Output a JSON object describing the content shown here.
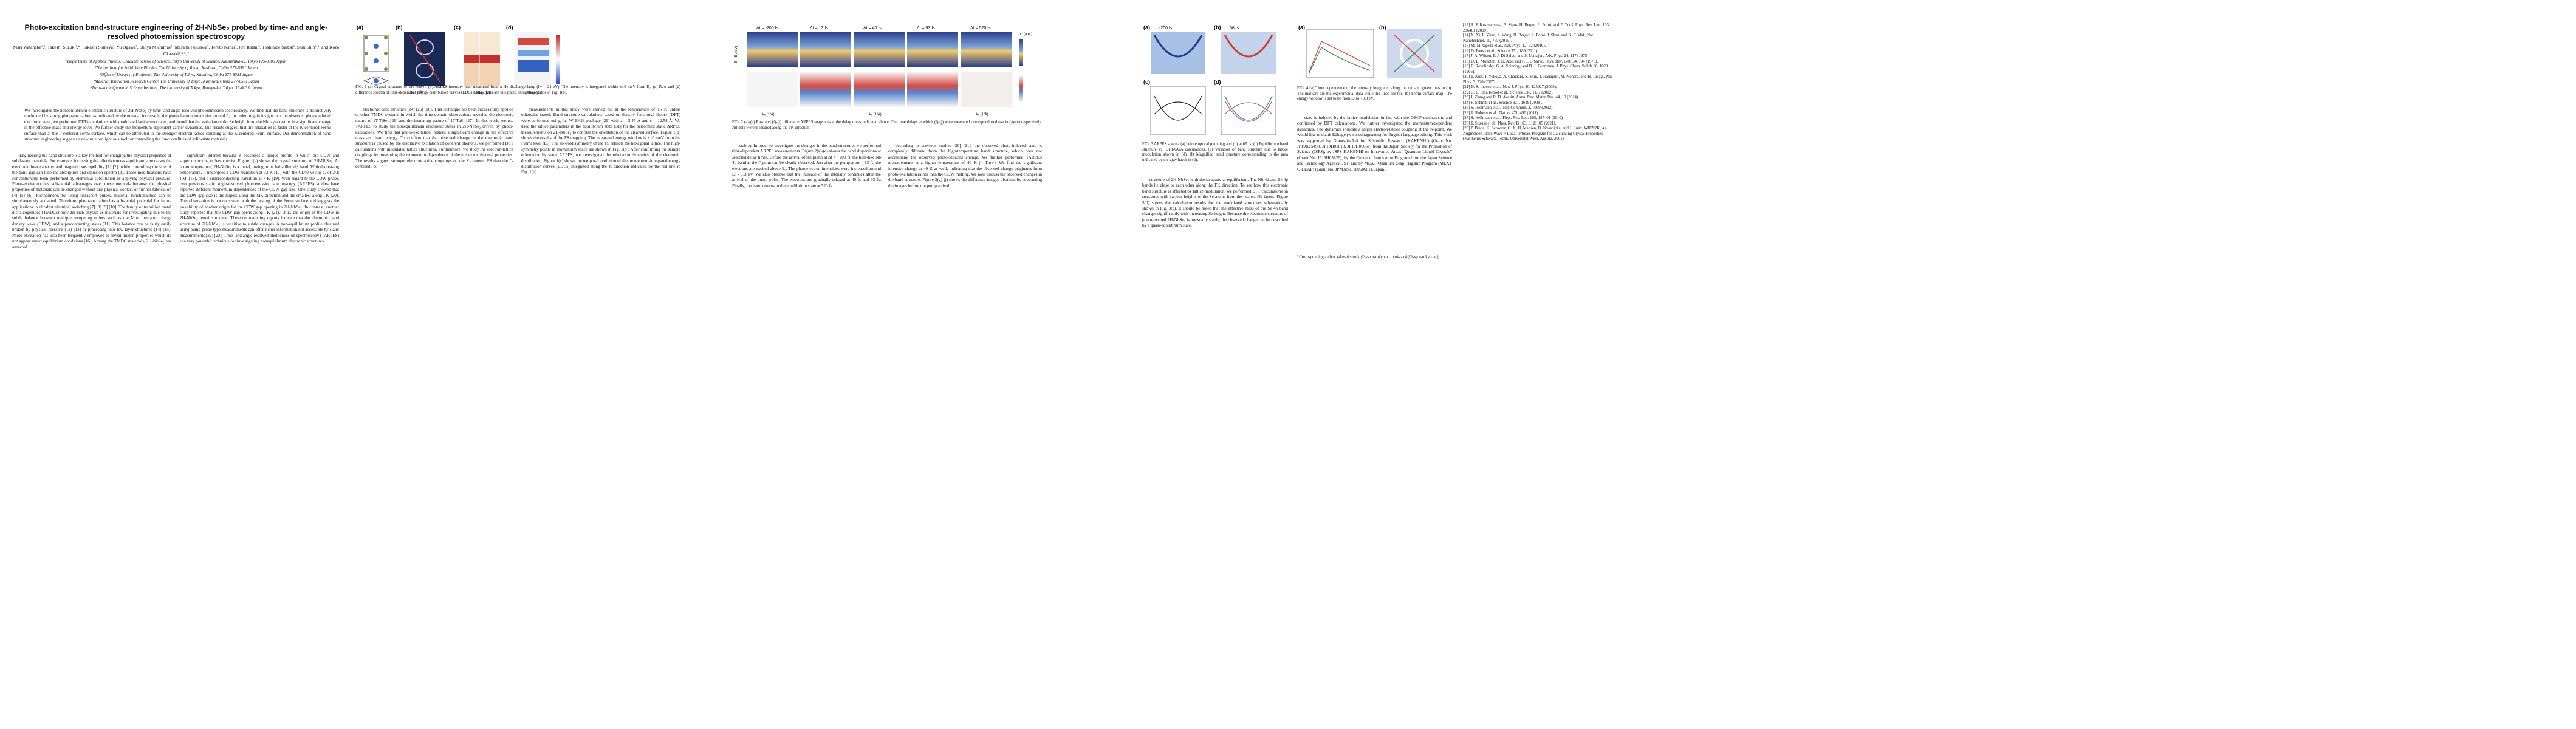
{
  "header": {
    "title": "Photo-excitation band-structure engineering of 2H-NbSe₂ probed by time- and angle-resolved photoemission spectroscopy",
    "authors": "Mari Watanabe¹,², Takeshi Suzuki²,*, Takashi Someya², Yu Ogawa², Shoya Michimae², Masami Fujisawa², Teruto Kanai², Jiro Itatani², Toshihide Saitoh³, Shik Shin²,⁴, and Kozo Okazaki²,⁴,⁵,*",
    "affiliations": [
      "¹Department of Applied Physics, Graduate School of Science, Tokyo University of Science, Katsushika-ku, Tokyo 125-8585 Japan",
      "²The Institute for Solid State Physics, The University of Tokyo, Kashiwa, Chiba 277-8581 Japan",
      "³Office of University Professor, The University of Tokyo, Kashiwa, Chiba 277-8581 Japan",
      "⁴Material Innovation Research Center, The University of Tokyo, Kashiwa, Chiba 277-8581 Japan",
      "⁵Trans-scale Quantum Science Institute, The University of Tokyo, Bunkyo-ku, Tokyo 113-0033, Japan"
    ]
  },
  "abstract": "We investigated the nonequilibrium electronic structure of 2H-NbSe₂ by time- and angle-resolved photoemission spectroscopy. We find that the band structure is distinctively modulated by strong photo-excitation, as indicated by the unusual increase in the photoelectron intensities around Eₒ. In order to gain insight into the observed photo-induced electronic state, we performed DFT calculations with modulated lattice structures, and found that the variation of the Se height from the Nb layer results in a significant change in the effective mass and energy level. We further study the momentum-dependent carrier dynamics. The results suggest that the relaxation is faster at the K-centered Fermi surface than at the Γ-centered Fermi surface, which can be attributed to the stronger electron-lattice coupling at the K-centered Fermi surface. Our demonstration of band structure engineering suggests a new rule for light as a tool for controlling the functionalities of solid-state materials.",
  "body": {
    "col1": "Engineering the band structure is a key method for changing the physical properties of solid-state materials. For example, increasing the effective mass significantly increases the electronic heat capacity and magnetic susceptibility [1] [2], while controlling the size of the band gap can tune the absorption and emission spectra [3]. These modifications have conventionally been performed by elemental substitution or applying physical pressure. Photo-excitation has substantial advantages over these methods because the physical properties of materials can be changed without any physical contact or further fabrication [4] [5] [6]. Furthermore, by using ultrashort pulses, material functionalities can be simultaneously activated. Therefore, photo-excitation has substantial potential for future applications in ultrafast electrical switching [7] [8] [9] [10]. The family of transition metal dichalcogenides (TMDCs) provides rich physics as materials for investigating due to the subtle balance between multiple competing orders such as the Mott insulator, charge density wave (CDW), and superconducting states [11]. This balance can be fairly easily broken by physical pressure [12] [13] or processing into few-layer structures [14] [15]. Photo-excitation has also been frequently employed to reveal hidden properties which do not appear under equilibrium conditions [16]. Among the TMDC materials, 2H-NbSe₂ has attracted",
    "col2": "significant interest because it possesses a unique profile in which the CDW and superconducting orders coexist. Figure 1(a) shows the crystal structure of 2H-NbSe₂. At room temperature, 2H-NbSe₂ is a metal, owing to its half-filled dₓ² band. With decreasing temperature, it undergoes a CDW transition at 33 K [17] with the CDW vector qₓ of 2/3|ΓM| [18], and a superconducting transition at 7 K [19]. With regard to the CDW phase, two previous static angle-resolved photoemission spectroscopy (ARPES) studies have reported different momentum dependences of the CDW gap size. One study showed that the CDW gap size is the largest along the MK direction and the smallest along ΓK [20]. This observation is not consistent with the nesting of the Fermi surface and suggests the possibility of another origin for the CDW gap opening in 2H-NbSe₂. In contrast, another study reported that the CDW gap opens along ΓK [21]. Thus, the origin of the CDW in 2H-NbSe₂ remains unclear. These contradicting reports indicate that the electronic band structure of 2H-NbSe₂ is sensitive to subtle changes. A non-equilibrium profile obtained using pump-probe type measurements can offer richer information not accessible by static measurements [22] [23]. Time- and angle-resolved photoemission spectroscopy (TARPES) is a very powerful technique for investigating nonequilibrium electronic structures.",
    "col3": "electronic band structure [24] [25] [10]. This technique has been successfully applied to other TMDC systems in which the time-domain observations revealed the electronic nature of 1T-TiSe₂ [26] and the insulating nature of 1T-TaS₂ [27]. In this work, we use TARPES to study the nonequilibrium electronic states in 2H-NbSe₂ driven by photo-excitations. We find that photo-excitation induces a significant change in the effective mass and band energy. To confirm that the observed change in the electronic band structure is caused by the displacive excitation of coherent phonons, we performed DFT calculations with modulated lattice structures. Furthermore, we study the electron-lattice couplings by measuring the momentum dependence of the electronic thermal properties. The results suggest stronger electron-lattice couplings on the K-centered FS than the Γ-centered FS.",
    "col4": "measurements in this study were carried out at the temperature of 15 K unless otherwise stated. Band structure calculations based on density functional theory (DFT) were performed using the WIEN2k package [29] with a = 3.45 Å and c = 12.54 Å. We used the lattice parameters in the equilibrium state [31] for the performed static ARPES measurements on 2H-NbSe₂ to confirm the orientation of the cleaved surface. Figure 1(b) shows the results of the FS mapping. The integrated energy window is ±10 meV from the Fermi level (Eₒ). The six-fold symmetry of the FS reflects the hexagonal lattice. The high-symmetry points in momentum space are shown in Fig. 1(b). After confirming the sample orientation by static ARPES, we investigated the relaxation dynamics of the electronic distribution. Figure 1(c) shows the temporal evolution of the momentum-integrated energy distribution curves (EDCs) integrated along the K direction indicated by the red line in Fig. 1(b).",
    "col5": "stable). In order to investigate the changes in the band structure, we performed time-dependent ARPES measurements. Figure 2(a)-(e) shows the band dispersions at selected delay times. Before the arrival of the pump at Δt = −200 fs, the hole-like Nb 4d band at the Γ point can be clearly observed. Just after the pump at Δt = 13 fs, the electrons are excited above Eₒ. The photoelectron intensities were increased around Eₒ - 1.3 eV. We also observe that the increase of the intensity continues after the arrival of the pump pulse. The electrons are gradually relaxed at 40 fs and 93 fs. Finally, the band returns to the equilibrium state at 520 fs.",
    "col6": "according to previous studies [20] [21], the observed photo-induced state is completely different from the high-temperature band structure, which does not accompany the observed photo-induced change. We further performed TARPES measurements at a higher temperature of 40 K (> Tₜᴅᴡ). We find the significant intensity change at 40 K as well, indicating that the observed change originates from photo-excitation rather than the CDW melting. We now discuss the observed changes in the band structure. Figure 2(g)-(j) shows the difference images obtained by subtracting the images before the pump arrival.",
    "col7": "structure of 2H-NbSe₂ with the structure at equilibrium. The Nb 4d and Se 4p bands lie close to each other along the ΓK direction. To see how this electronic band structure is affected by lattice modulation, we performed DFT calculations on structures with various heights of the Se atoms from the nearest Nb layers. Figure 3(d) shows the calculation results for the modulated structures schematically shown in Fig. 3(c). It should be noted that the effective mass of the Se 4p band changes significantly with increasing Se height. Because the electronic structure of photo-excited 2H-NbSe₂ is unusually stable, the observed change can be described by a quasi-equilibrium state.",
    "col8": "state is induced by the lattice modulation in line with the DECP mechanism, and confirmed by DFT calculations. We further investigated the momentum-dependent dynamics. The dynamics indicate a larger electron-lattice coupling at the K-point. We would like to thank Editage (www.editage.com) for English language editing. This work was supported by Grants-in-Aid for Scientific Research (KAKENHI) (Grant No. JP19K15498, JP19H01818, JP19H00651) from the Japan Society for the Promotion of Science (JSPS), by JSPS KAKENHI on Innovative Areas “Quantum Liquid Crystals” (Grant No. JP19H05826), by the Center of Innovation Program from the Japan Science and Technology Agency, JST, and by MEXT Quantum Leap Flagship Program (MEXT Q-LEAP) (Grant No. JPMXS0118068681), Japan."
  },
  "figures": {
    "fig1_caption": "FIG. 1 (a) Crystal structure of 2H-NbSe₂. (b) ARPES intensity map measured from a He discharge lamp (hν = 21 eV). The intensity is integrated within ±10 meV from Eₒ. (c) Raw and (d) difference spectra of time-dependent energy distribution curves (EDCs). The EDCs are integrated along the red line in Fig. 1(b).",
    "fig2_caption": "FIG. 2 (a)-(e) Raw and (f)-(j) difference ARPES snapshots at the delay times indicated above. The time delays at which (f)-(j) were measured correspond to those in (a)-(e) respectively. All data were measured along the ΓK direction.",
    "fig3_caption": "FIG. 3 ARPES spectra (a) before optical pumping and (b) at 66 fs. (c) Equilibrium band structure vs. DFT-GGA calculations. (d) Variation of band structure due to lattice modulation shown in (d). (f) Magnified band structure corresponding to the area indicated by the gray hatch in (d).",
    "fig4_caption": "FIG. 4 (a) Time dependence of the intensity integrated along the red and green lines in (b). The markers are the experimental data while the lines are fits. (b) Fermi surface map. The energy window is set to be from Eₒ to +0.8 eV.",
    "fig2_delays": [
      "Δt = -200 fs",
      "Δt = 13 fs",
      "Δt = 40 fs",
      "Δt = 93 fs",
      "Δt = 520 fs"
    ],
    "fig3_delays": [
      "-200 fs",
      "66 fs"
    ],
    "axis_kx": "kₓ (1/Å)",
    "axis_ky": "kᵧ (1/Å)",
    "axis_e": "E - Eₒ (eV)",
    "axis_delay": "Delay (ps)",
    "int_label": "Int. (a.u.)",
    "panels": [
      "(a)",
      "(b)",
      "(c)",
      "(d)",
      "(e)",
      "(f)",
      "(g)",
      "(h)",
      "(i)",
      "(j)"
    ]
  },
  "references": {
    "col_a": [
      "[13] A. F. Kusmartseva, B. Sipos, H. Berger, L. Forró, and E. Tutiš, Phys. Rev. Lett. 103, 236401 (2009).",
      "[14] X. Xi, L. Zhao, Z. Wang, H. Berger, L. Forró, J. Shan, and K. F. Mak, Nat. Nanotechnol. 10, 765 (2015).",
      "[15] M. M. Ugeda et al., Nat. Phys. 12, 92 (2016).",
      "[16] D. Fausti et al., Science 331, 189 (2011).",
      "[17] J. A. Wilson, F. J. Di Salvo, and S. Mahajan, Adv. Phys. 24, 117 (1975).",
      "[18] D. E. Moncton, J. D. Axe, and F. J. DiSalvo, Phys. Rev. Lett. 34, 734 (1975).",
      "[19] E. Revolinsky, G. A. Spiering, and D. J. Beerntsen, J. Phys. Chem. Solids 26, 1029 (1965).",
      "[20] T. Kiss, T. Yokoya, A. Chainani, S. Shin, T. Hanaguri, M. Nohara, and H. Takagi, Nat. Phys. 3, 720 (2007).",
      "[21] D. S. Inosov et al., New J. Phys. 10, 125027 (2008).",
      "[22] C. L. Smallwood et al., Science 336, 1137 (2012).",
      "[23] J. Zhang and R. D. Averitt, Annu. Rev. Mater. Res. 44, 19 (2014).",
      "[24] F. Schmitt et al., Science 321, 1649 (2008).",
      "[25] S. Hellmann et al., Nat. Commun. 3, 1069 (2012).",
      "[26] T. Rohwer et al., Nature 471, 490 (2011).",
      "[27] S. Hellmann et al., Phys. Rev. Lett. 105, 187401 (2010).",
      "[28] T. Suzuki et al., Phys. Rev. B 103, L121105 (2021).",
      "[29] P. Blaha, K. Schwarz, G. K. H. Madsen, D. Kvasnicka, and J. Luitz, WIEN2K, An Augmented Plane Wave + Local Orbitals Program for Calculating Crystal Properties (Karlheinz Schwarz, Techn. Universität Wien, Austria, 2001)."
    ],
    "corresponding": "*Corresponding author. takeshi.suzuki@issp.u-tokyo.ac.jp  okazaki@issp.u-tokyo.ac.jp"
  }
}
